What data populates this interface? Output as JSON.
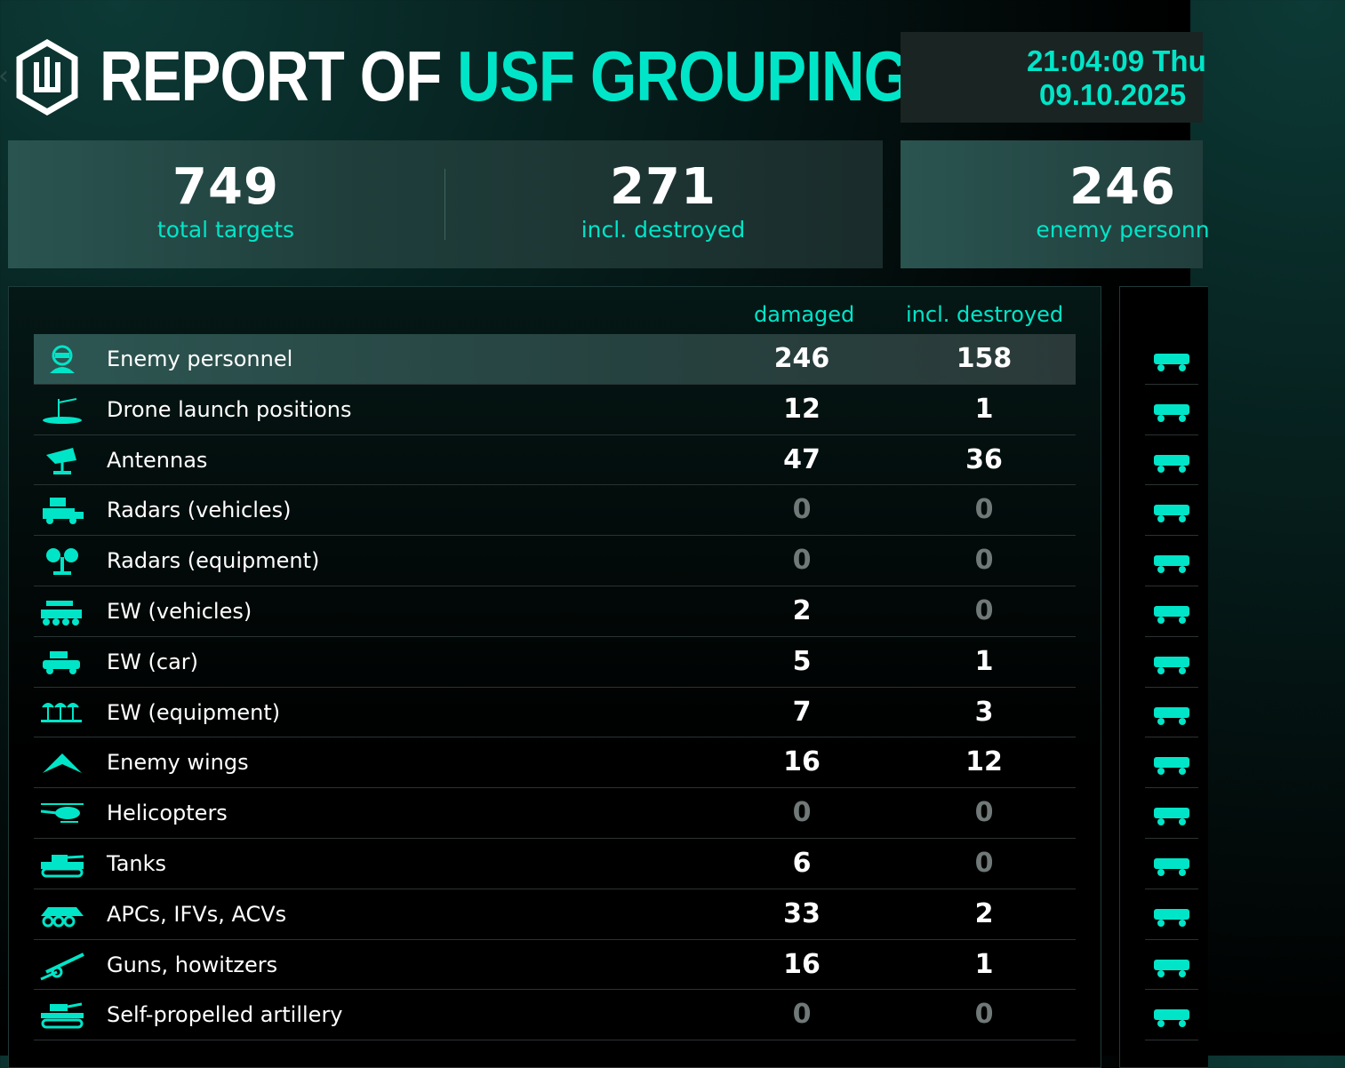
{
  "header": {
    "title_white": "REPORT OF ",
    "title_accent": "USF GROUPING",
    "time": "21:04:09 Thu",
    "date": "09.10.2025",
    "accent_color": "#00e5c8"
  },
  "stats": [
    {
      "value": "749",
      "label": "total targets"
    },
    {
      "value": "271",
      "label": "incl. destroyed"
    },
    {
      "value": "246",
      "label": "enemy personn"
    }
  ],
  "table": {
    "col_damaged": "damaged",
    "col_destroyed": "incl. destroyed",
    "rows": [
      {
        "label": "Enemy personnel",
        "damaged": "246",
        "destroyed": "158",
        "icon": "soldier-icon"
      },
      {
        "label": "Drone launch positions",
        "damaged": "12",
        "destroyed": "1",
        "icon": "launch-position-icon"
      },
      {
        "label": "Antennas",
        "damaged": "47",
        "destroyed": "36",
        "icon": "antenna-icon"
      },
      {
        "label": "Radars (vehicles)",
        "damaged": "0",
        "destroyed": "0",
        "icon": "radar-vehicle-icon"
      },
      {
        "label": "Radars (equipment)",
        "damaged": "0",
        "destroyed": "0",
        "icon": "radar-equipment-icon"
      },
      {
        "label": "EW (vehicles)",
        "damaged": "2",
        "destroyed": "0",
        "icon": "ew-vehicle-icon"
      },
      {
        "label": "EW (car)",
        "damaged": "5",
        "destroyed": "1",
        "icon": "ew-car-icon"
      },
      {
        "label": "EW (equipment)",
        "damaged": "7",
        "destroyed": "3",
        "icon": "ew-equipment-icon"
      },
      {
        "label": "Enemy wings",
        "damaged": "16",
        "destroyed": "12",
        "icon": "wing-icon"
      },
      {
        "label": "Helicopters",
        "damaged": "0",
        "destroyed": "0",
        "icon": "helicopter-icon"
      },
      {
        "label": "Tanks",
        "damaged": "6",
        "destroyed": "0",
        "icon": "tank-icon"
      },
      {
        "label": "APCs, IFVs, ACVs",
        "damaged": "33",
        "destroyed": "2",
        "icon": "apc-icon"
      },
      {
        "label": "Guns, howitzers",
        "damaged": "16",
        "destroyed": "1",
        "icon": "howitzer-icon"
      },
      {
        "label": "Self-propelled artillery",
        "damaged": "0",
        "destroyed": "0",
        "icon": "spg-icon"
      }
    ]
  },
  "right_icons": [
    "mortar-icon",
    "mlrs-icon",
    "truck-icon",
    "motorcycle-icon",
    "hangar-icon",
    "factory-icon",
    "gear-equipment-icon",
    "bunker-icon",
    "dugout-icon",
    "power-vehicle-icon",
    "turret-icon",
    "drone-icon",
    "armored-vehicle-icon",
    "explosion-icon"
  ]
}
